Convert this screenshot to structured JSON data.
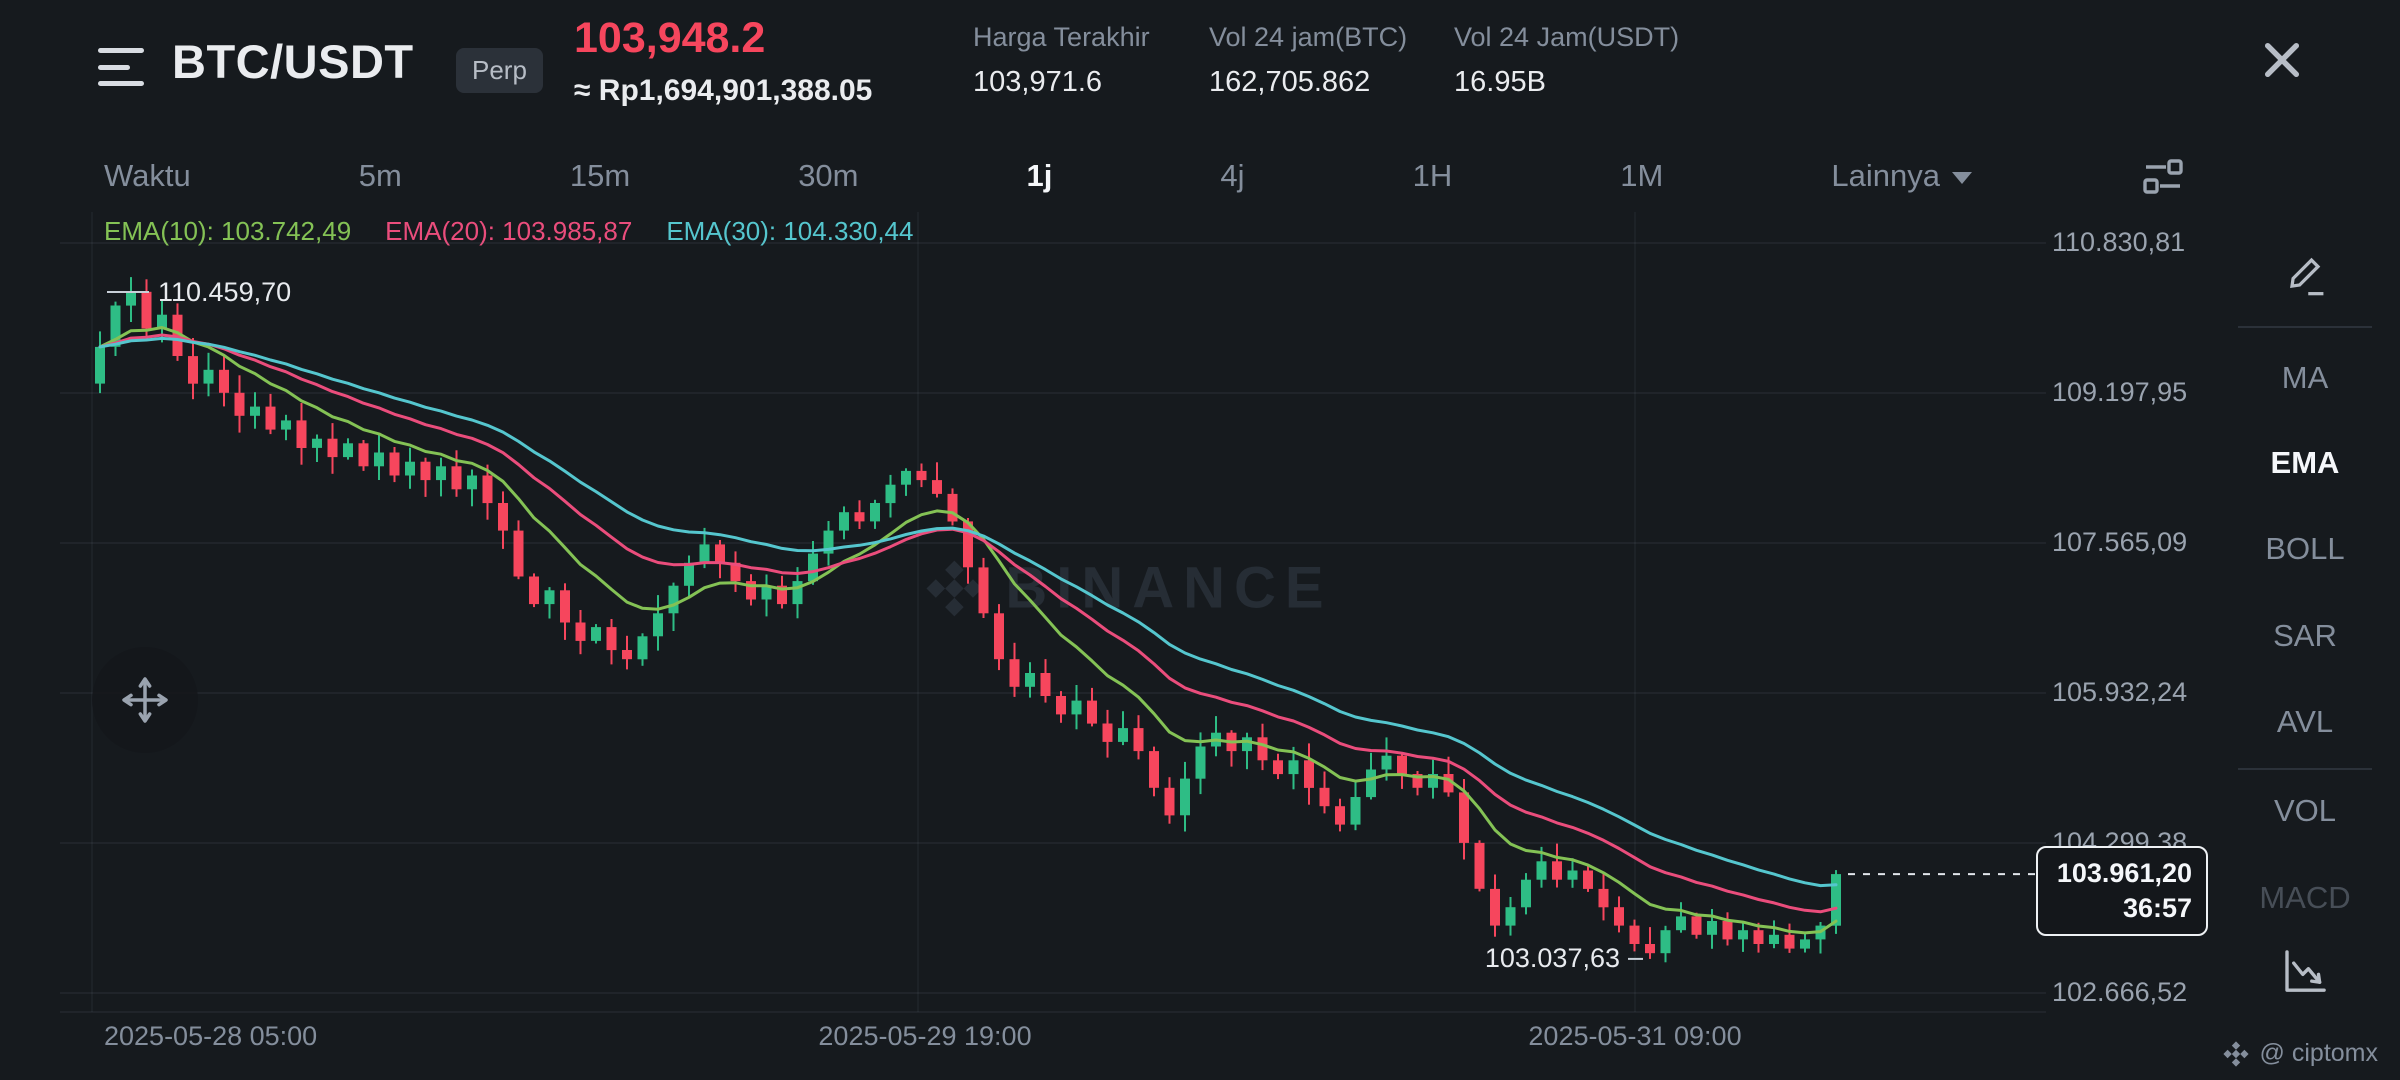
{
  "header": {
    "symbol": "BTC/USDT",
    "market_badge": "Perp",
    "last_price": "103,948.2",
    "last_price_color": "#F6465D",
    "fiat_equivalent": "≈ Rp1,694,901,388.05",
    "stats": [
      {
        "label": "Harga Terakhir",
        "value": "103,971.6"
      },
      {
        "label": "Vol 24 jam(BTC)",
        "value": "162,705.862"
      },
      {
        "label": "Vol 24 Jam(USDT)",
        "value": "16.95B"
      }
    ]
  },
  "timeframe_bar": {
    "items": [
      "Waktu",
      "5m",
      "15m",
      "30m",
      "1j",
      "4j",
      "1H",
      "1M"
    ],
    "active": "1j",
    "more_label": "Lainnya"
  },
  "indicator_sidebar": {
    "items": [
      "MA",
      "EMA",
      "BOLL",
      "SAR",
      "AVL",
      "VOL",
      "MACD"
    ],
    "active": "EMA"
  },
  "watermark": "BINANCE",
  "credit": "@ ciptomx",
  "chart_data": {
    "type": "candlestick",
    "symbol": "BTC/USDT Perpetual",
    "interval": "1j",
    "grid": true,
    "colors": {
      "up": "#2EBD85",
      "down": "#F6465D"
    },
    "price_axis": {
      "gridline_values": [
        110830.81,
        109197.95,
        107565.09,
        105932.24,
        104299.38,
        102666.52
      ],
      "labels": [
        "110.830,81",
        "109.197,95",
        "107.565,09",
        "105.932,24",
        "104.299,38",
        "102.666,52"
      ]
    },
    "time_axis": {
      "labels": [
        "2025-05-28 05:00",
        "2025-05-29 19:00",
        "2025-05-31 09:00"
      ]
    },
    "emas": [
      {
        "period": 10,
        "value_label": "EMA(10): 103.742,49",
        "color": "#84C255"
      },
      {
        "period": 20,
        "value_label": "EMA(20): 103.985,87",
        "color": "#EA4D7C"
      },
      {
        "period": 30,
        "value_label": "EMA(30): 104.330,44",
        "color": "#55C6CE"
      }
    ],
    "first_open": 109300,
    "closes": [
      109700,
      110150,
      110300,
      109900,
      110050,
      109600,
      109300,
      109450,
      109200,
      108950,
      109050,
      108800,
      108900,
      108600,
      108700,
      108500,
      108650,
      108400,
      108550,
      108300,
      108450,
      108250,
      108400,
      108150,
      108300,
      108000,
      107700,
      107200,
      106900,
      107050,
      106700,
      106500,
      106650,
      106400,
      106300,
      106550,
      106800,
      107100,
      107350,
      107550,
      107350,
      107150,
      106950,
      107100,
      106900,
      107150,
      107450,
      107700,
      107900,
      107800,
      108000,
      108200,
      108350,
      108250,
      108100,
      107800,
      107300,
      106800,
      106300,
      106000,
      106150,
      105900,
      105700,
      105850,
      105600,
      105400,
      105550,
      105300,
      104900,
      104600,
      105000,
      105350,
      105500,
      105300,
      105450,
      105200,
      105050,
      105200,
      104900,
      104700,
      104500,
      104800,
      105100,
      105250,
      105050,
      104900,
      105050,
      104850,
      104300,
      103800,
      103400,
      103600,
      103900,
      104100,
      103900,
      104000,
      103800,
      103600,
      103400,
      103200,
      103100,
      103350,
      103500,
      103300,
      103450,
      103250,
      103350,
      103200,
      103300,
      103150,
      103250,
      103400,
      103961.2
    ],
    "markers": {
      "high": {
        "index": 2,
        "price": 110459.7,
        "label": "110.459,70"
      },
      "low": {
        "index": 100,
        "price": 103037.63,
        "label": "103.037,63"
      }
    },
    "last_price": {
      "value": 103961.2,
      "label": "103.961,20",
      "countdown": "36:57"
    }
  }
}
